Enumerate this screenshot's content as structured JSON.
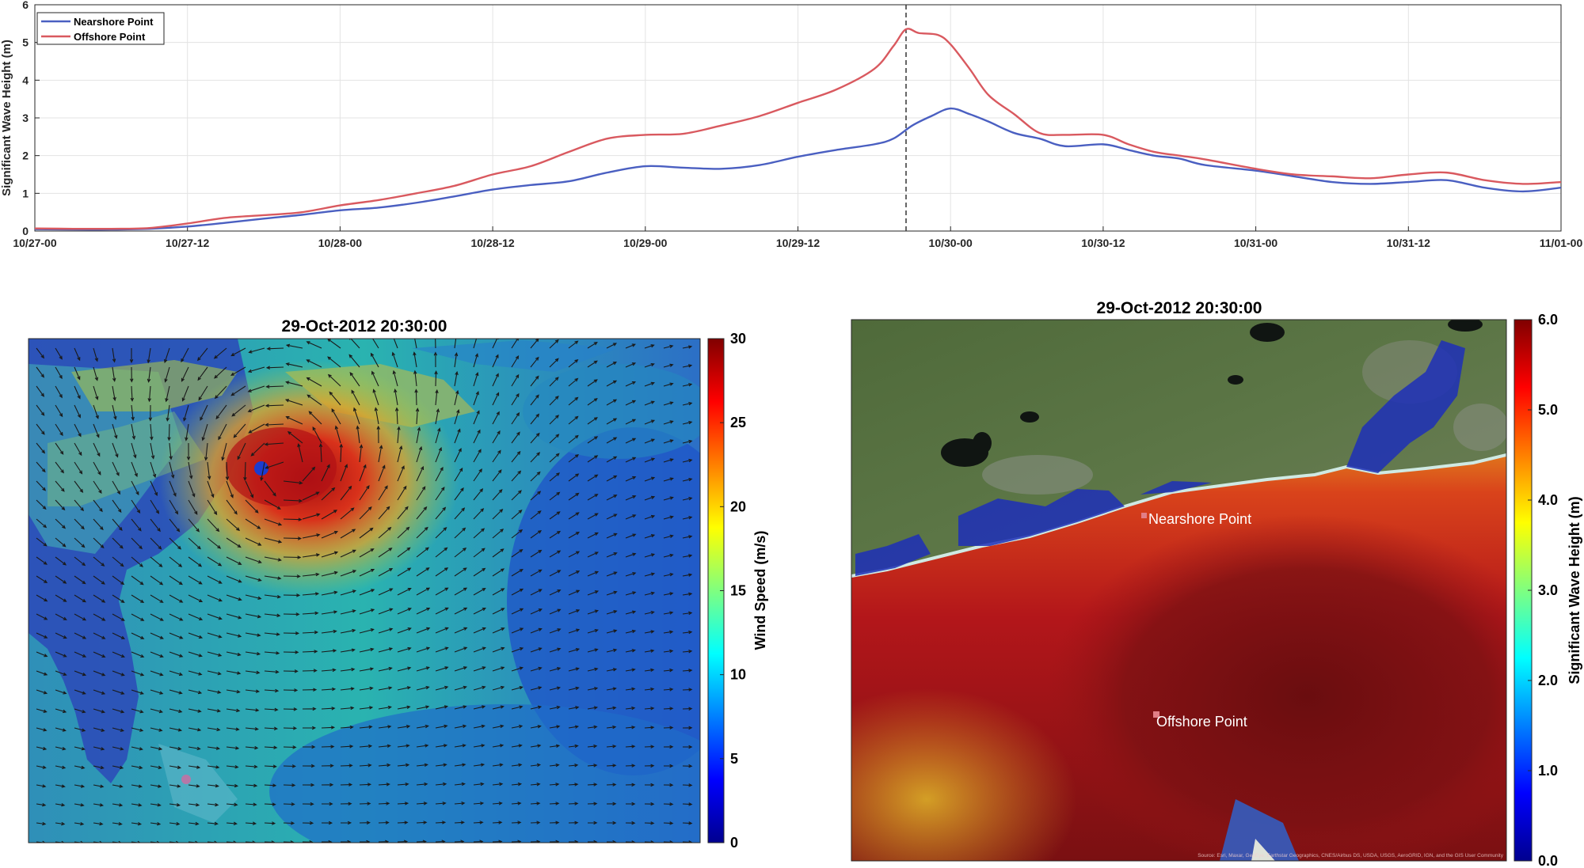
{
  "chart_data": [
    {
      "type": "line",
      "title": "",
      "xlabel": "",
      "ylabel": "Significant Wave Height (m)",
      "xlim": [
        0,
        120
      ],
      "ylim": [
        0,
        6
      ],
      "x_tick_values": [
        0,
        12,
        24,
        36,
        48,
        60,
        72,
        84,
        96,
        108,
        120
      ],
      "x_tick_labels": [
        "10/27-00",
        "10/27-12",
        "10/28-00",
        "10/28-12",
        "10/29-00",
        "10/29-12",
        "10/30-00",
        "10/30-12",
        "10/31-00",
        "10/31-12",
        "11/01-00"
      ],
      "y_ticks": [
        0,
        1,
        2,
        3,
        4,
        5,
        6
      ],
      "grid": true,
      "legend": "top-left",
      "vline_x": 68.5,
      "series": [
        {
          "name": "Nearshore Point",
          "color": "#4a5fc1",
          "x": [
            0,
            3,
            6,
            9,
            12,
            15,
            18,
            21,
            24,
            27,
            30,
            33,
            36,
            39,
            42,
            45,
            48,
            51,
            54,
            57,
            60,
            63,
            66,
            67.5,
            69,
            70.5,
            72,
            73.5,
            75,
            77,
            79,
            81,
            84,
            86,
            88,
            90,
            92,
            96,
            99,
            102,
            105,
            108,
            111,
            114,
            117,
            120
          ],
          "y": [
            0.05,
            0.04,
            0.04,
            0.06,
            0.12,
            0.22,
            0.33,
            0.43,
            0.55,
            0.62,
            0.75,
            0.92,
            1.1,
            1.22,
            1.32,
            1.55,
            1.72,
            1.68,
            1.65,
            1.75,
            1.97,
            2.15,
            2.3,
            2.45,
            2.8,
            3.05,
            3.25,
            3.1,
            2.9,
            2.6,
            2.45,
            2.25,
            2.3,
            2.15,
            2.0,
            1.92,
            1.75,
            1.6,
            1.45,
            1.3,
            1.25,
            1.3,
            1.35,
            1.15,
            1.05,
            1.15
          ]
        },
        {
          "name": "Offshore Point",
          "color": "#d9595f",
          "x": [
            0,
            3,
            6,
            9,
            12,
            15,
            18,
            21,
            24,
            27,
            30,
            33,
            36,
            39,
            42,
            45,
            48,
            51,
            54,
            57,
            60,
            63,
            66,
            67.5,
            68.5,
            69.5,
            71,
            72,
            73.5,
            75,
            77,
            79,
            81,
            84,
            86,
            88,
            90,
            92,
            96,
            99,
            102,
            105,
            108,
            111,
            114,
            117,
            120
          ],
          "y": [
            0.07,
            0.06,
            0.06,
            0.08,
            0.2,
            0.35,
            0.42,
            0.5,
            0.68,
            0.82,
            1.0,
            1.2,
            1.5,
            1.72,
            2.1,
            2.45,
            2.55,
            2.58,
            2.8,
            3.05,
            3.4,
            3.75,
            4.3,
            4.9,
            5.35,
            5.25,
            5.2,
            4.95,
            4.3,
            3.6,
            3.1,
            2.6,
            2.55,
            2.55,
            2.3,
            2.1,
            2.0,
            1.9,
            1.65,
            1.5,
            1.45,
            1.4,
            1.5,
            1.55,
            1.35,
            1.25,
            1.3
          ]
        }
      ]
    },
    {
      "type": "heatmap",
      "title": "29-Oct-2012 20:30:00",
      "colorbar_label": "Wind Speed (m/s)",
      "colorbar_range": [
        0,
        30
      ],
      "colorbar_ticks": [
        0,
        5,
        10,
        15,
        20,
        25,
        30
      ],
      "colormap": "jet"
    },
    {
      "type": "heatmap",
      "title": "29-Oct-2012 20:30:00",
      "colorbar_label": "Significant Wave Height (m)",
      "colorbar_range": [
        0,
        6
      ],
      "colorbar_ticks": [
        "0.0",
        "1.0",
        "2.0",
        "3.0",
        "4.0",
        "5.0",
        "6.0"
      ],
      "colormap": "jet",
      "point_labels": [
        "Nearshore Point",
        "Offshore Point"
      ],
      "attribution": "Source: Esri, Maxar, GeoEye, Earthstar Geographics, CNES/Airbus DS, USDA, USGS, AeroGRID, IGN, and the GIS User Community"
    }
  ]
}
